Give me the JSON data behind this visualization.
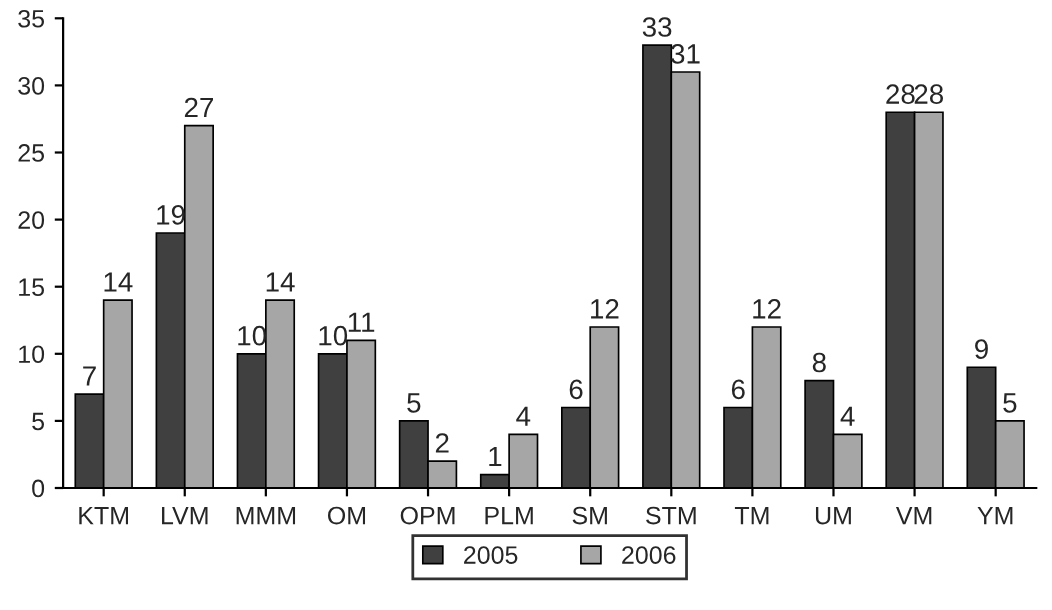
{
  "chart_data": {
    "type": "bar",
    "categories": [
      "KTM",
      "LVM",
      "MMM",
      "OM",
      "OPM",
      "PLM",
      "SM",
      "STM",
      "TM",
      "UM",
      "VM",
      "YM"
    ],
    "series": [
      {
        "name": "2005",
        "color": "#404040",
        "values": [
          7,
          19,
          10,
          10,
          5,
          1,
          6,
          33,
          6,
          8,
          28,
          9
        ]
      },
      {
        "name": "2006",
        "color": "#a6a6a6",
        "values": [
          14,
          27,
          14,
          11,
          2,
          4,
          12,
          31,
          12,
          4,
          28,
          5
        ]
      }
    ],
    "ylim": [
      0,
      35
    ],
    "yticks": [
      0,
      5,
      10,
      15,
      20,
      25,
      30,
      35
    ],
    "grid": false,
    "legend": "bottom",
    "data_labels": true
  }
}
